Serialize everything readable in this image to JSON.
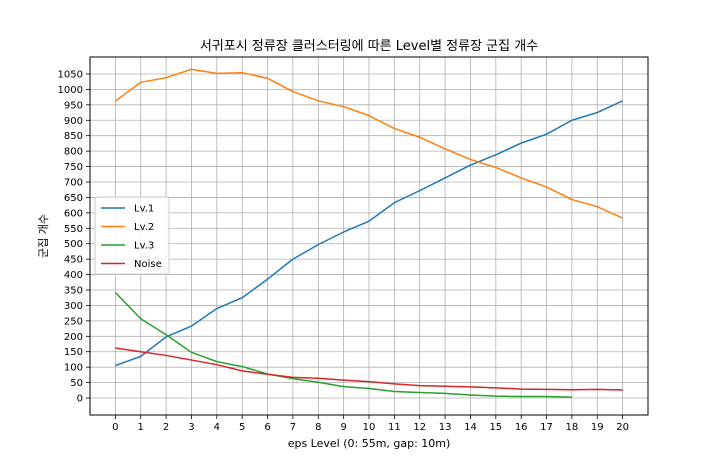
{
  "chart_data": {
    "type": "line",
    "title": "서귀포시 정류장 클러스터링에 따른 Level별 정류장 군집 개수",
    "xlabel": "eps Level (0: 55m, gap: 10m)",
    "ylabel": "군집 개수",
    "x": [
      0,
      1,
      2,
      3,
      4,
      5,
      6,
      7,
      8,
      9,
      10,
      11,
      12,
      13,
      14,
      15,
      16,
      17,
      18,
      19,
      20
    ],
    "xlim": [
      -1,
      21
    ],
    "ylim": [
      -55,
      1105
    ],
    "yticks": [
      0,
      50,
      100,
      150,
      200,
      250,
      300,
      350,
      400,
      450,
      500,
      550,
      600,
      650,
      700,
      750,
      800,
      850,
      900,
      950,
      1000,
      1050
    ],
    "grid": true,
    "legend_position": "center-left",
    "series": [
      {
        "name": "Lv.1",
        "color": "#1f77b4",
        "values": [
          105,
          135,
          198,
          233,
          290,
          325,
          385,
          450,
          497,
          538,
          573,
          633,
          672,
          713,
          755,
          788,
          826,
          855,
          900,
          925,
          963
        ]
      },
      {
        "name": "Lv.2",
        "color": "#ff7f0e",
        "values": [
          962,
          1023,
          1038,
          1065,
          1052,
          1054,
          1036,
          993,
          963,
          944,
          915,
          873,
          845,
          807,
          773,
          747,
          713,
          684,
          643,
          620,
          583
        ]
      },
      {
        "name": "Lv.3",
        "color": "#2ca02c",
        "values": [
          342,
          257,
          205,
          148,
          118,
          102,
          78,
          63,
          51,
          37,
          31,
          21,
          18,
          15,
          10,
          6,
          5,
          5,
          3,
          null,
          null
        ]
      },
      {
        "name": "Noise",
        "color": "#d62728",
        "values": [
          162,
          150,
          138,
          123,
          108,
          88,
          77,
          67,
          64,
          58,
          53,
          46,
          40,
          38,
          36,
          33,
          29,
          28,
          27,
          28,
          26
        ]
      }
    ]
  }
}
